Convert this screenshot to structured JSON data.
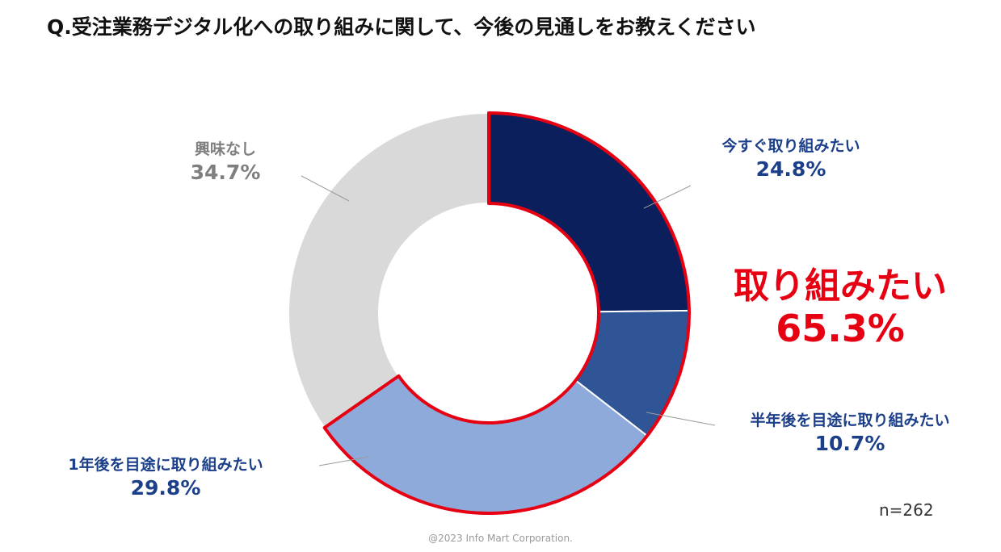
{
  "title": "Q.受注業務デジタル化への取り組みに関して、今後の見通しをお教えください",
  "chart_data": {
    "type": "pie",
    "slices": [
      {
        "label": "今すぐ取り組みたい",
        "pct_text": "24.8%",
        "value": 24.8,
        "color": "#0a1f5c",
        "label_color": "#1c3f8a",
        "highlight": true
      },
      {
        "label": "半年後を目途に取り組みたい",
        "pct_text": "10.7%",
        "value": 10.7,
        "color": "#2f5597",
        "label_color": "#1c3f8a",
        "highlight": true
      },
      {
        "label": "1年後を目途に取り組みたい",
        "pct_text": "29.8%",
        "value": 29.8,
        "color": "#8eaadb",
        "label_color": "#1c3f8a",
        "highlight": true
      },
      {
        "label": "興味なし",
        "pct_text": "34.7%",
        "value": 34.7,
        "color": "#d9d9d9",
        "label_color": "#7f7f7f",
        "highlight": false
      }
    ],
    "annotation": {
      "label": "取り組みたい",
      "pct_text": "65.3%",
      "value": 65.3,
      "color": "#e60012"
    },
    "n_label": "n=262"
  },
  "copyright": "@2023 Info Mart Corporation."
}
